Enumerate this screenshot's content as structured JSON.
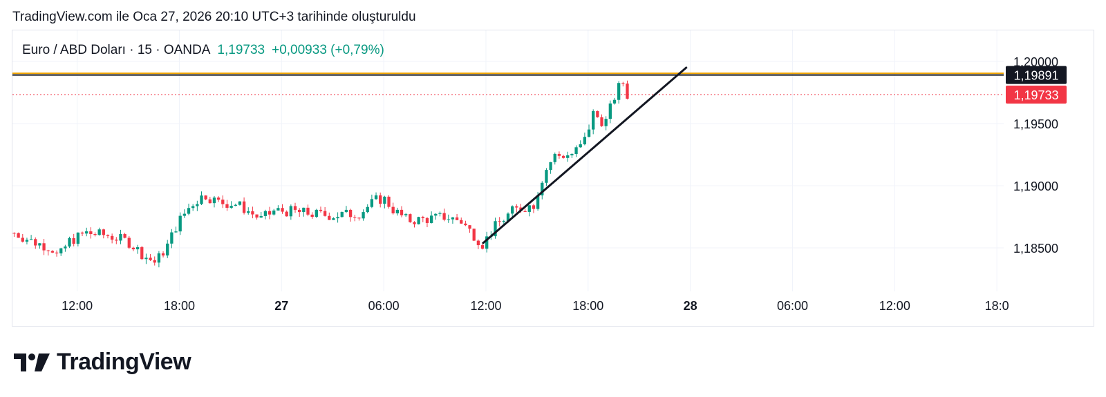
{
  "header": {
    "caption": "TradingView.com ile Oca 27, 2026 20:10 UTC+3 tarihinde oluşturuldu"
  },
  "legend": {
    "symbol": "Euro / ABD Doları · 15 · OANDA",
    "price": "1,19733",
    "change": "+0,00933 (+0,79%)"
  },
  "logo": {
    "text": "TradingView",
    "icon": "tradingview-logo-icon"
  },
  "colors": {
    "up": "#089981",
    "down": "#f23645",
    "grid": "#f0f3fa",
    "text": "#131722",
    "hline_gold": "#f0a500",
    "hline_black": "#131722",
    "last_price": "#f23645"
  },
  "chart_data": {
    "type": "candlestick",
    "interval": "15",
    "y_tick_labels": [
      "1,20000",
      "1,19500",
      "1,19000",
      "1,18500"
    ],
    "y_ticks": [
      1.2,
      1.195,
      1.19,
      1.185
    ],
    "x_tick_labels": [
      "12:00",
      "18:00",
      "27",
      "06:00",
      "12:00",
      "18:00",
      "28",
      "06:00",
      "12:00",
      "18:0"
    ],
    "x_tick_bold": [
      false,
      false,
      true,
      false,
      false,
      false,
      true,
      false,
      false,
      false
    ],
    "x_tick_hours": [
      12,
      18,
      24,
      30,
      36,
      42,
      48,
      54,
      60,
      66
    ],
    "x_range_hours": [
      8.2,
      66.4
    ],
    "y_range": [
      1.1815,
      1.2025
    ],
    "horizontal_lines": [
      {
        "value": 1.19891,
        "label": "1,19891",
        "style": "black"
      },
      {
        "value": 1.19905,
        "style": "gold"
      }
    ],
    "last_price": {
      "value": 1.19733,
      "label": "1,19733"
    },
    "trendline": {
      "start": {
        "t": 35.8,
        "v": 1.18535
      },
      "end": {
        "t": 47.8,
        "v": 1.19955
      }
    },
    "close_keypoints": [
      [
        8.3,
        1.1862
      ],
      [
        9.4,
        1.1855
      ],
      [
        10.5,
        1.185
      ],
      [
        10.9,
        1.1842
      ],
      [
        11.5,
        1.1855
      ],
      [
        12.5,
        1.1862
      ],
      [
        13.8,
        1.186
      ],
      [
        15.0,
        1.1855
      ],
      [
        16.0,
        1.1843
      ],
      [
        16.6,
        1.1838
      ],
      [
        17.3,
        1.1852
      ],
      [
        17.9,
        1.187
      ],
      [
        18.7,
        1.1885
      ],
      [
        19.5,
        1.1893
      ],
      [
        20.2,
        1.1887
      ],
      [
        21.4,
        1.1885
      ],
      [
        22.8,
        1.1873
      ],
      [
        23.6,
        1.188
      ],
      [
        24.8,
        1.1879
      ],
      [
        26.0,
        1.1877
      ],
      [
        27.0,
        1.1876
      ],
      [
        28.6,
        1.1878
      ],
      [
        29.5,
        1.1888
      ],
      [
        30.0,
        1.189
      ],
      [
        30.6,
        1.188
      ],
      [
        31.4,
        1.1872
      ],
      [
        32.4,
        1.1873
      ],
      [
        33.6,
        1.1875
      ],
      [
        34.5,
        1.1872
      ],
      [
        35.8,
        1.1853
      ],
      [
        36.6,
        1.1868
      ],
      [
        37.6,
        1.188
      ],
      [
        38.8,
        1.1885
      ],
      [
        39.4,
        1.191
      ],
      [
        40.0,
        1.1924
      ],
      [
        41.0,
        1.1925
      ],
      [
        41.7,
        1.1933
      ],
      [
        42.0,
        1.1945
      ],
      [
        42.3,
        1.1958
      ],
      [
        43.0,
        1.195
      ],
      [
        43.5,
        1.197
      ],
      [
        44.0,
        1.1985
      ],
      [
        44.3,
        1.1973
      ]
    ]
  }
}
